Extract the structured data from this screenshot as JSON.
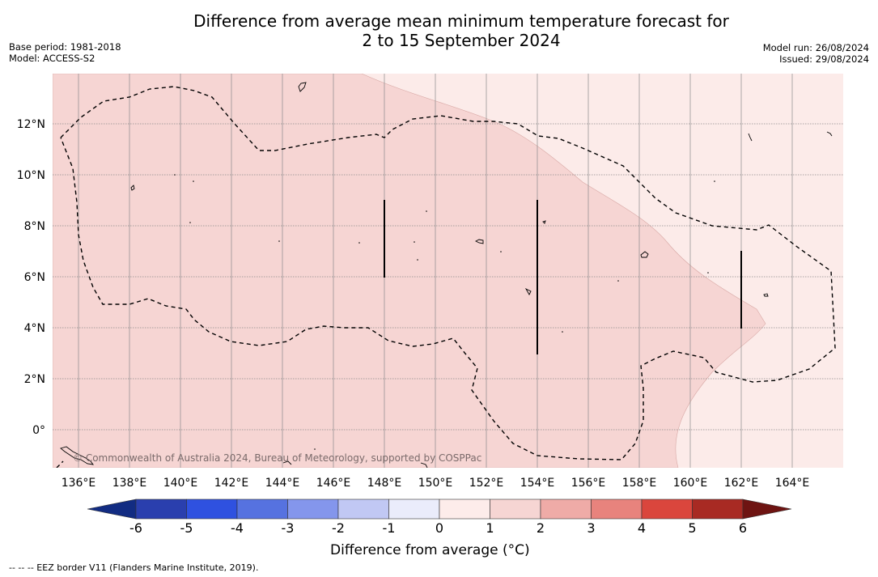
{
  "header": {
    "title_line1": "Difference from average mean minimum temperature forecast for",
    "title_line2": "2 to 15 September 2024",
    "base_period": "Base period: 1981-2018",
    "model": "Model: ACCESS-S2",
    "model_run": "Model run: 26/08/2024",
    "issued": "Issued: 29/08/2024"
  },
  "map": {
    "lon_ticks": [
      "136°E",
      "138°E",
      "140°E",
      "142°E",
      "144°E",
      "146°E",
      "148°E",
      "150°E",
      "152°E",
      "154°E",
      "156°E",
      "158°E",
      "160°E",
      "162°E",
      "164°E"
    ],
    "lat_ticks": [
      "12°N",
      "10°N",
      "8°N",
      "6°N",
      "4°N",
      "2°N",
      "0°"
    ],
    "copyright": "© Commonwealth of Australia 2024, Bureau of Meteorology, supported by COSPPac",
    "colors": {
      "anomaly_1_to_2": "#f6d5d3",
      "anomaly_0_to_1": "#fcebe9"
    }
  },
  "colorbar": {
    "tick_labels": [
      "-6",
      "-5",
      "-4",
      "-3",
      "-2",
      "-1",
      "0",
      "1",
      "2",
      "3",
      "4",
      "5",
      "6"
    ],
    "label": "Difference from average (°C)",
    "colors": [
      "#122c82",
      "#2a3fae",
      "#2f51e0",
      "#5672e0",
      "#8496ec",
      "#c1c8f4",
      "#eaecfb",
      "#fdecea",
      "#f6d5d3",
      "#efaba7",
      "#e8837d",
      "#da463d",
      "#a82a23",
      "#6e1412"
    ]
  },
  "legend": {
    "eez_note": "--  --  -- EEZ border V11 (Flanders Marine Institute, 2019)."
  }
}
